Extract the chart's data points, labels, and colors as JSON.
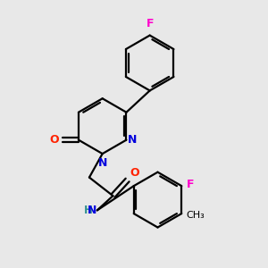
{
  "background_color": "#e8e8e8",
  "bond_color": "#000000",
  "figsize": [
    3.0,
    3.0
  ],
  "dpi": 100,
  "colors": {
    "N": "#0000dd",
    "O": "#ff2200",
    "F": "#ff00cc",
    "NH": "#2f8f8f",
    "C": "#000000"
  }
}
